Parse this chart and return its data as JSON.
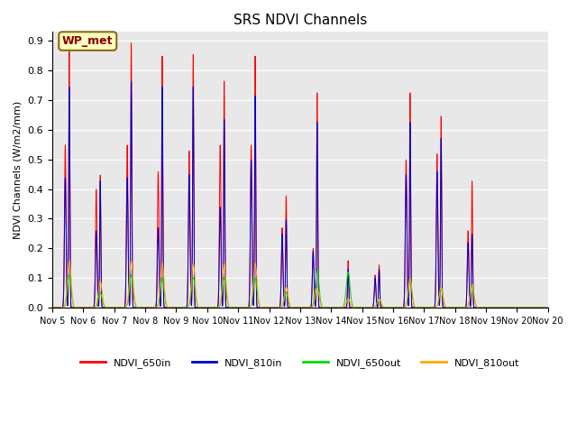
{
  "title": "SRS NDVI Channels",
  "ylabel": "NDVI Channels (W/m2/mm)",
  "xlabel": "",
  "bg_color": "#e8e8e8",
  "fig_bg": "#ffffff",
  "line_colors": {
    "NDVI_650in": "#ff0000",
    "NDVI_810in": "#0000cc",
    "NDVI_650out": "#00dd00",
    "NDVI_810out": "#ffaa00"
  },
  "ylim": [
    0.0,
    0.93
  ],
  "yticks": [
    0.0,
    0.1,
    0.2,
    0.3,
    0.4,
    0.5,
    0.6,
    0.7,
    0.8,
    0.9
  ],
  "annotation_text": "WP_met",
  "days": [
    "Nov 5",
    "Nov 6",
    "Nov 7",
    "Nov 8",
    "Nov 9",
    "Nov 10",
    "Nov 11",
    "Nov 12",
    "Nov 13",
    "Nov 14",
    "Nov 15",
    "Nov 16",
    "Nov 17",
    "Nov 18",
    "Nov 19",
    "Nov 20"
  ],
  "day_peaks_650in": [
    0.89,
    0.45,
    0.9,
    0.855,
    0.86,
    0.77,
    0.855,
    0.38,
    0.73,
    0.16,
    0.145,
    0.73,
    0.65,
    0.43,
    0.0,
    0.0
  ],
  "day_peaks_810in": [
    0.75,
    0.43,
    0.77,
    0.75,
    0.75,
    0.64,
    0.72,
    0.3,
    0.63,
    0.13,
    0.13,
    0.63,
    0.575,
    0.25,
    0.0,
    0.0
  ],
  "day_peaks_650out": [
    0.11,
    0.05,
    0.11,
    0.1,
    0.1,
    0.1,
    0.1,
    0.05,
    0.13,
    0.12,
    0.03,
    0.09,
    0.06,
    0.07,
    0.0,
    0.0
  ],
  "day_peaks_810out": [
    0.16,
    0.09,
    0.16,
    0.15,
    0.15,
    0.15,
    0.15,
    0.07,
    0.07,
    0.03,
    0.03,
    0.1,
    0.07,
    0.08,
    0.0,
    0.0
  ],
  "shoulder_650in": [
    0.55,
    0.4,
    0.55,
    0.46,
    0.53,
    0.55,
    0.55,
    0.27,
    0.2,
    0.0,
    0.11,
    0.5,
    0.52,
    0.26,
    0.0,
    0.0
  ],
  "shoulder_810in": [
    0.44,
    0.26,
    0.44,
    0.27,
    0.45,
    0.34,
    0.5,
    0.25,
    0.19,
    0.0,
    0.1,
    0.45,
    0.46,
    0.22,
    0.0,
    0.0
  ],
  "points_per_day": 200,
  "legend_entries": [
    "NDVI_650in",
    "NDVI_810in",
    "NDVI_650out",
    "NDVI_810out"
  ]
}
